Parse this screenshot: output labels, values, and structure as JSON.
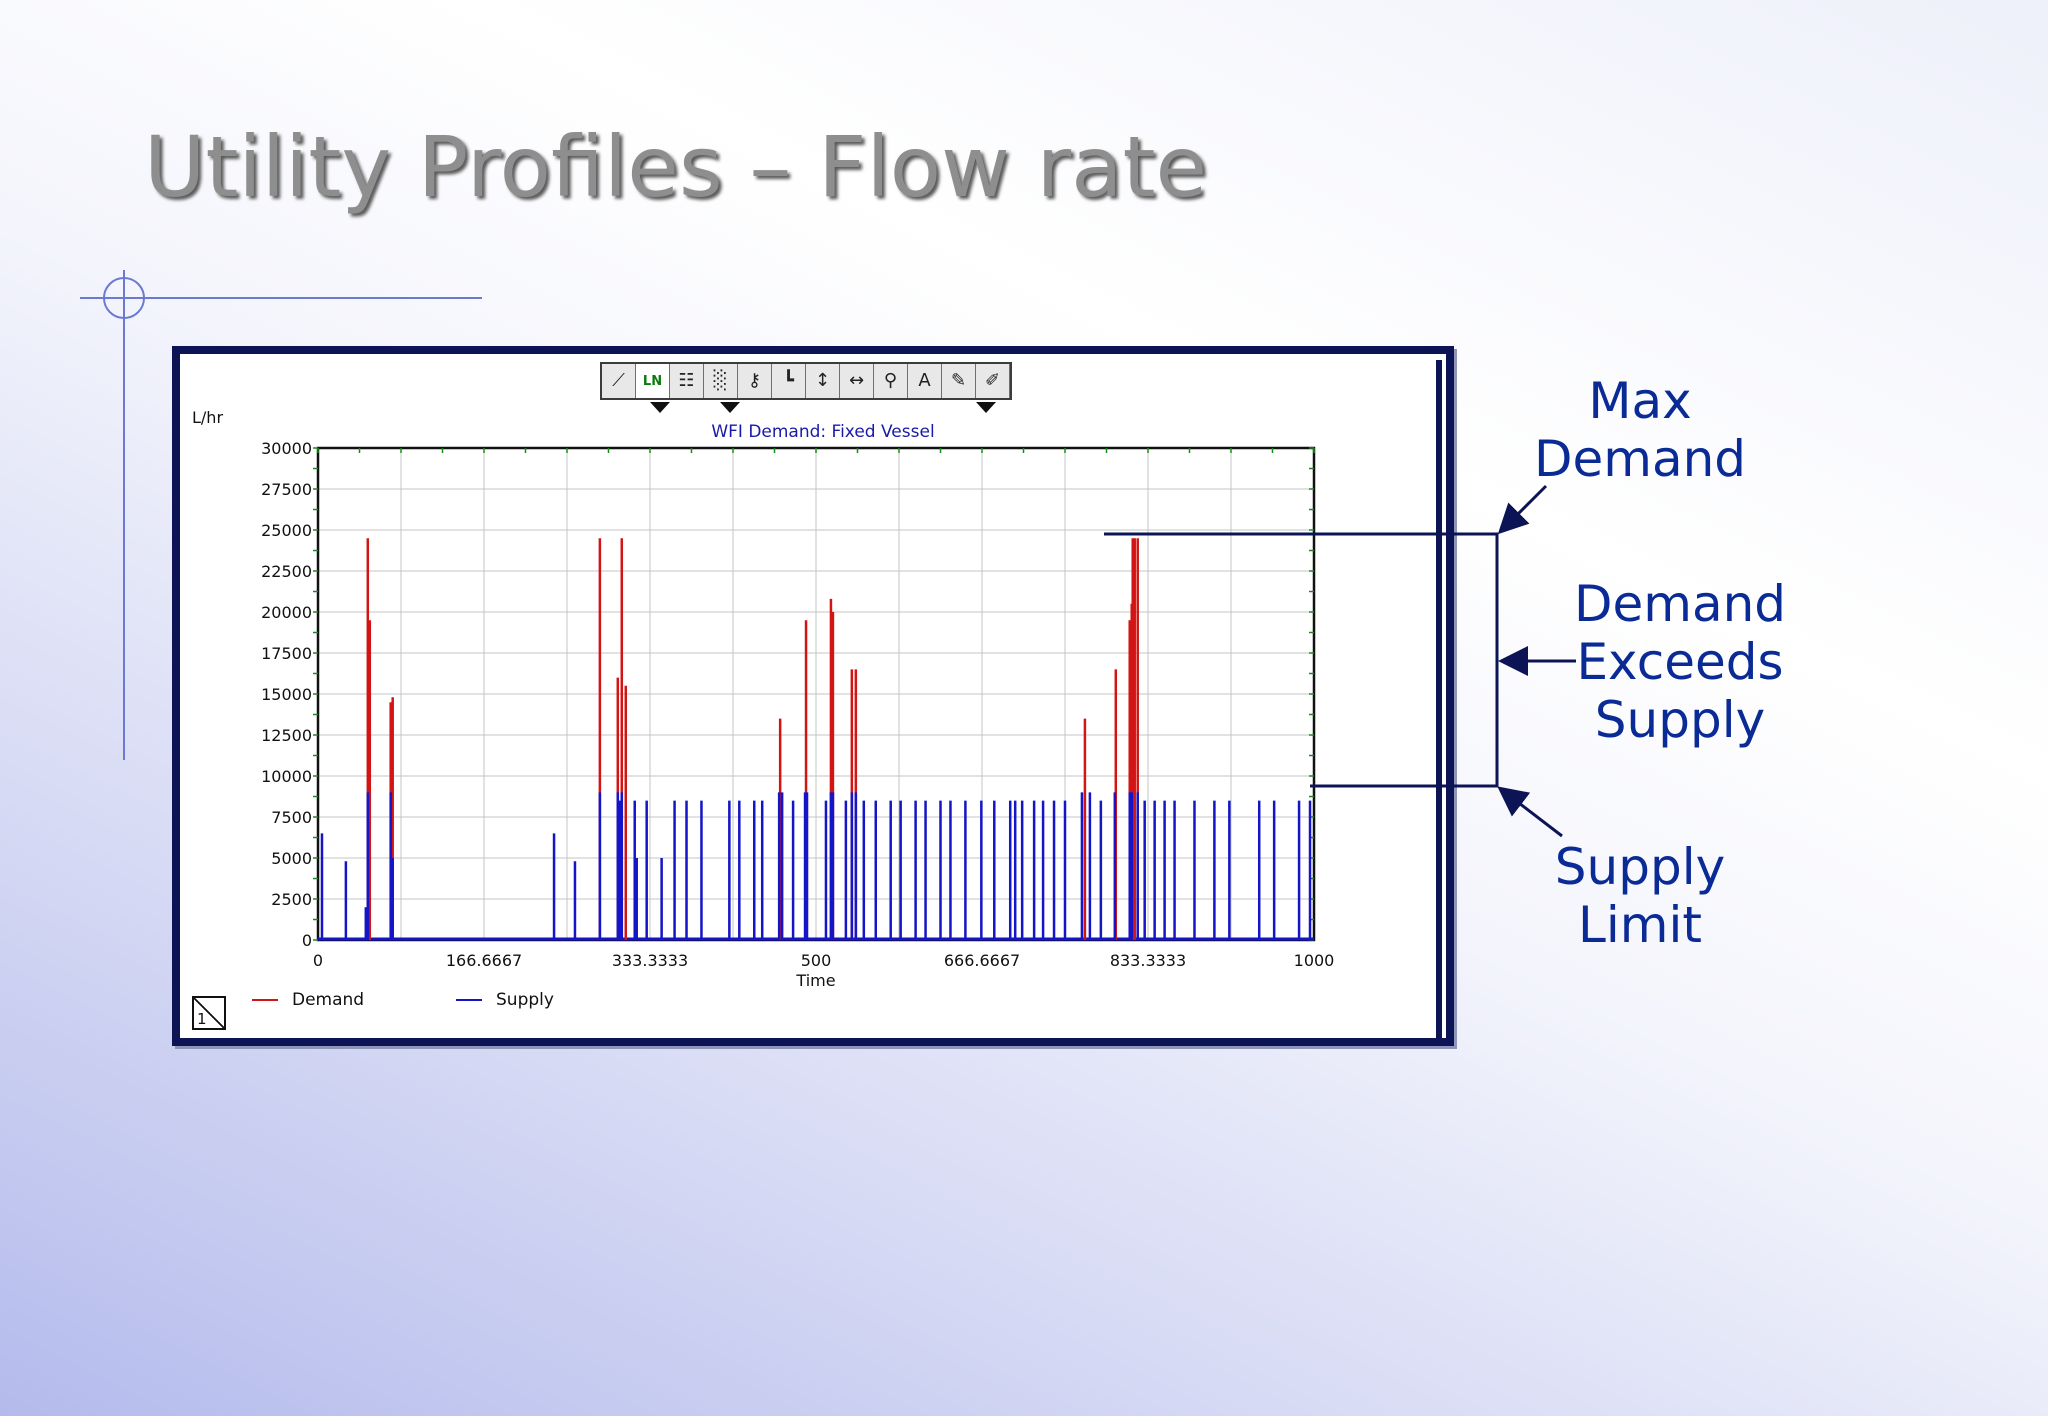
{
  "slide": {
    "title": "Utility Profiles – Flow rate"
  },
  "toolbar": {
    "buttons": [
      {
        "icon": "line-graph-icon",
        "glyph": "⟋"
      },
      {
        "icon": "ln-scale-icon",
        "glyph": "LN"
      },
      {
        "icon": "properties-icon",
        "glyph": "☷"
      },
      {
        "icon": "grid-icon",
        "glyph": "░"
      },
      {
        "icon": "key-icon",
        "glyph": "⚷"
      },
      {
        "icon": "x-axis-icon",
        "glyph": "┗"
      },
      {
        "icon": "y-axis-icon",
        "glyph": "↕"
      },
      {
        "icon": "xy-axis-icon",
        "glyph": "↔"
      },
      {
        "icon": "zoom-icon",
        "glyph": "⚲"
      },
      {
        "icon": "text-annotate-icon",
        "glyph": "A"
      },
      {
        "icon": "pencil-icon",
        "glyph": "✎"
      },
      {
        "icon": "eraser-icon",
        "glyph": "✐"
      }
    ]
  },
  "annotations": {
    "max_demand": [
      "Max",
      "Demand"
    ],
    "demand_exceeds_supply": [
      "Demand",
      "Exceeds",
      "Supply"
    ],
    "supply_limit": [
      "Supply",
      "Limit"
    ]
  },
  "page_indicator": "1",
  "colors": {
    "demand": "#d21414",
    "supply": "#1414c8",
    "annotation": "#0a2a96",
    "bracket": "#0d1456",
    "frame": "#0d1456"
  },
  "chart_data": {
    "type": "bar",
    "title": "WFI Demand: Fixed Vessel",
    "xlabel": "Time",
    "ylabel": "L/hr",
    "xlim": [
      0,
      1000
    ],
    "ylim": [
      0,
      30000
    ],
    "x_ticks": [
      "0",
      "166.6667",
      "333.3333",
      "500",
      "666.6667",
      "833.3333",
      "1000"
    ],
    "y_ticks": [
      "0",
      "2500",
      "5000",
      "7500",
      "10000",
      "12500",
      "15000",
      "17500",
      "20000",
      "22500",
      "25000",
      "27500",
      "30000"
    ],
    "grid": true,
    "legend_position": "bottom-left",
    "series": [
      {
        "name": "Demand",
        "x": [
          50,
          52,
          73,
          75,
          283,
          301,
          305,
          309,
          464,
          490,
          515,
          517,
          536,
          540,
          770,
          801,
          815,
          817,
          818,
          820,
          823
        ],
        "values": [
          24500,
          19500,
          14500,
          14800,
          24500,
          16000,
          24500,
          15500,
          13500,
          19500,
          20800,
          20000,
          16500,
          16500,
          13500,
          16500,
          19500,
          20500,
          24500,
          24500,
          24500
        ]
      },
      {
        "name": "Supply",
        "x": [
          4,
          28,
          48,
          50,
          73,
          75,
          237,
          258,
          283,
          301,
          303,
          305,
          318,
          320,
          330,
          345,
          358,
          370,
          385,
          413,
          423,
          438,
          446,
          463,
          466,
          477,
          489,
          491,
          510,
          515,
          517,
          530,
          536,
          540,
          548,
          560,
          575,
          585,
          600,
          610,
          625,
          635,
          650,
          666,
          679,
          695,
          700,
          707,
          719,
          728,
          739,
          750,
          767,
          775,
          786,
          800,
          815,
          817,
          823,
          830,
          840,
          850,
          860,
          880,
          900,
          915,
          945,
          960,
          985,
          996
        ],
        "values": [
          6500,
          4800,
          2000,
          9000,
          9000,
          5000,
          6500,
          4800,
          9000,
          9000,
          8500,
          9000,
          8500,
          5000,
          8500,
          5000,
          8500,
          8500,
          8500,
          8500,
          8500,
          8500,
          8500,
          9000,
          9000,
          8500,
          9000,
          9000,
          8500,
          9000,
          9000,
          8500,
          9000,
          9000,
          8500,
          8500,
          8500,
          8500,
          8500,
          8500,
          8500,
          8500,
          8500,
          8500,
          8500,
          8500,
          8500,
          8500,
          8500,
          8500,
          8500,
          8500,
          9000,
          9000,
          8500,
          9000,
          9000,
          9000,
          9000,
          8500,
          8500,
          8500,
          8500,
          8500,
          8500,
          8500,
          8500,
          8500,
          8500,
          8500
        ]
      }
    ]
  }
}
